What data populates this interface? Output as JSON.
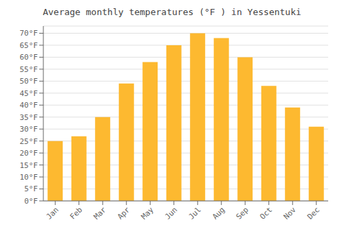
{
  "chart_data": {
    "type": "bar",
    "title": "Average monthly temperatures (°F ) in Yessentuki",
    "categories": [
      "Jan",
      "Feb",
      "Mar",
      "Apr",
      "May",
      "Jun",
      "Jul",
      "Aug",
      "Sep",
      "Oct",
      "Nov",
      "Dec"
    ],
    "values": [
      25,
      27,
      35,
      49,
      58,
      65,
      70,
      68,
      60,
      48,
      39,
      31
    ],
    "color": "#FDB930",
    "ylim": [
      0,
      73
    ],
    "yticks": [
      {
        "value": 0,
        "label": "0°F"
      },
      {
        "value": 5,
        "label": "5°F"
      },
      {
        "value": 10,
        "label": "10°F"
      },
      {
        "value": 15,
        "label": "15°F"
      },
      {
        "value": 20,
        "label": "20°F"
      },
      {
        "value": 25,
        "label": "25°F"
      },
      {
        "value": 30,
        "label": "30°F"
      },
      {
        "value": 35,
        "label": "35°F"
      },
      {
        "value": 40,
        "label": "40°F"
      },
      {
        "value": 45,
        "label": "45°F"
      },
      {
        "value": 50,
        "label": "50°F"
      },
      {
        "value": 55,
        "label": "55°F"
      },
      {
        "value": 60,
        "label": "60°F"
      },
      {
        "value": 65,
        "label": "65°F"
      },
      {
        "value": 70,
        "label": "70°F"
      }
    ],
    "grid": true
  }
}
